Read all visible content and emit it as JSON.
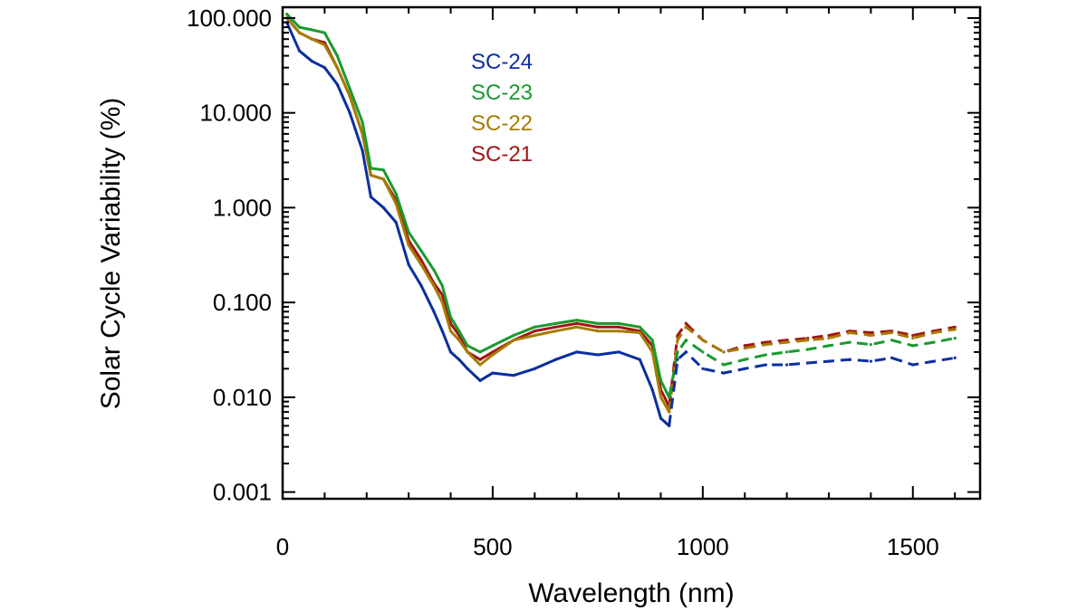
{
  "chart_data": {
    "type": "line",
    "title": "",
    "xlabel": "Wavelength (nm)",
    "ylabel": "Solar Cycle Variability (%)",
    "xlim": [
      0,
      1660
    ],
    "ylim": [
      0.00085,
      130
    ],
    "yscale": "log",
    "x_ticks": [
      0,
      500,
      1000,
      1500
    ],
    "x_tick_labels": [
      "0",
      "500",
      "1000",
      "1500"
    ],
    "y_ticks": [
      0.001,
      0.01,
      0.1,
      1,
      10,
      100
    ],
    "y_tick_labels": [
      "0.001",
      "0.010",
      "0.100",
      "1.000",
      "10.000",
      "100.000"
    ],
    "grid": false,
    "legend_position": "top-left",
    "series": [
      {
        "name": "SC-21",
        "color": "#a31515",
        "dash_after_nm": 930,
        "x": [
          10,
          40,
          70,
          100,
          130,
          160,
          190,
          210,
          240,
          270,
          300,
          330,
          360,
          380,
          400,
          420,
          440,
          470,
          500,
          550,
          600,
          650,
          700,
          750,
          800,
          850,
          880,
          900,
          920,
          940,
          960,
          1000,
          1050,
          1100,
          1150,
          1200,
          1250,
          1300,
          1350,
          1400,
          1450,
          1500,
          1550,
          1600
        ],
        "y": [
          100,
          70,
          60,
          55,
          30,
          15,
          6,
          2.2,
          2.0,
          1.2,
          0.45,
          0.28,
          0.16,
          0.12,
          0.06,
          0.045,
          0.03,
          0.025,
          0.03,
          0.04,
          0.05,
          0.055,
          0.06,
          0.055,
          0.055,
          0.05,
          0.035,
          0.012,
          0.008,
          0.045,
          0.06,
          0.04,
          0.03,
          0.035,
          0.038,
          0.04,
          0.042,
          0.045,
          0.05,
          0.048,
          0.05,
          0.045,
          0.05,
          0.055
        ]
      },
      {
        "name": "SC-22",
        "color": "#a67c00",
        "dash_after_nm": 930,
        "x": [
          10,
          40,
          70,
          100,
          130,
          160,
          190,
          210,
          240,
          270,
          300,
          330,
          360,
          380,
          400,
          420,
          440,
          470,
          500,
          550,
          600,
          650,
          700,
          750,
          800,
          850,
          880,
          900,
          920,
          940,
          960,
          1000,
          1050,
          1100,
          1150,
          1200,
          1250,
          1300,
          1350,
          1400,
          1450,
          1500,
          1550,
          1600
        ],
        "y": [
          100,
          70,
          60,
          52,
          30,
          15,
          6,
          2.2,
          2.0,
          1.1,
          0.4,
          0.25,
          0.15,
          0.1,
          0.05,
          0.04,
          0.03,
          0.022,
          0.028,
          0.04,
          0.045,
          0.05,
          0.055,
          0.05,
          0.05,
          0.048,
          0.03,
          0.01,
          0.007,
          0.04,
          0.055,
          0.04,
          0.03,
          0.033,
          0.036,
          0.038,
          0.04,
          0.042,
          0.048,
          0.045,
          0.048,
          0.042,
          0.048,
          0.052
        ]
      },
      {
        "name": "SC-23",
        "color": "#1a9a2e",
        "dash_after_nm": 930,
        "x": [
          10,
          40,
          70,
          100,
          130,
          160,
          190,
          210,
          240,
          270,
          300,
          330,
          360,
          380,
          400,
          420,
          440,
          470,
          500,
          550,
          600,
          650,
          700,
          750,
          800,
          850,
          880,
          900,
          920,
          940,
          960,
          1000,
          1050,
          1100,
          1150,
          1200,
          1250,
          1300,
          1350,
          1400,
          1450,
          1500,
          1550,
          1600
        ],
        "y": [
          110,
          80,
          75,
          70,
          40,
          18,
          8,
          2.6,
          2.5,
          1.4,
          0.55,
          0.35,
          0.22,
          0.15,
          0.07,
          0.05,
          0.035,
          0.03,
          0.035,
          0.045,
          0.055,
          0.06,
          0.065,
          0.06,
          0.06,
          0.055,
          0.04,
          0.015,
          0.01,
          0.03,
          0.04,
          0.03,
          0.022,
          0.025,
          0.028,
          0.03,
          0.032,
          0.035,
          0.038,
          0.036,
          0.04,
          0.035,
          0.038,
          0.042
        ]
      },
      {
        "name": "SC-24",
        "color": "#0a2f9e",
        "dash_after_nm": 930,
        "x": [
          10,
          40,
          70,
          100,
          130,
          160,
          190,
          210,
          240,
          270,
          300,
          330,
          360,
          380,
          400,
          420,
          440,
          470,
          500,
          550,
          600,
          650,
          700,
          750,
          800,
          850,
          880,
          900,
          920,
          940,
          960,
          1000,
          1050,
          1100,
          1150,
          1200,
          1250,
          1300,
          1350,
          1400,
          1450,
          1500,
          1550,
          1600
        ],
        "y": [
          90,
          45,
          35,
          30,
          20,
          10,
          4,
          1.3,
          1.0,
          0.7,
          0.25,
          0.15,
          0.08,
          0.05,
          0.03,
          0.025,
          0.02,
          0.015,
          0.018,
          0.017,
          0.02,
          0.025,
          0.03,
          0.028,
          0.03,
          0.025,
          0.012,
          0.006,
          0.005,
          0.025,
          0.03,
          0.02,
          0.018,
          0.02,
          0.022,
          0.022,
          0.023,
          0.024,
          0.025,
          0.024,
          0.026,
          0.022,
          0.024,
          0.026
        ]
      }
    ]
  },
  "legend": {
    "entries": [
      {
        "label": "SC-24",
        "color": "#0a2f9e"
      },
      {
        "label": "SC-23",
        "color": "#1a9a2e"
      },
      {
        "label": "SC-22",
        "color": "#a67c00"
      },
      {
        "label": "SC-21",
        "color": "#a31515"
      }
    ]
  }
}
